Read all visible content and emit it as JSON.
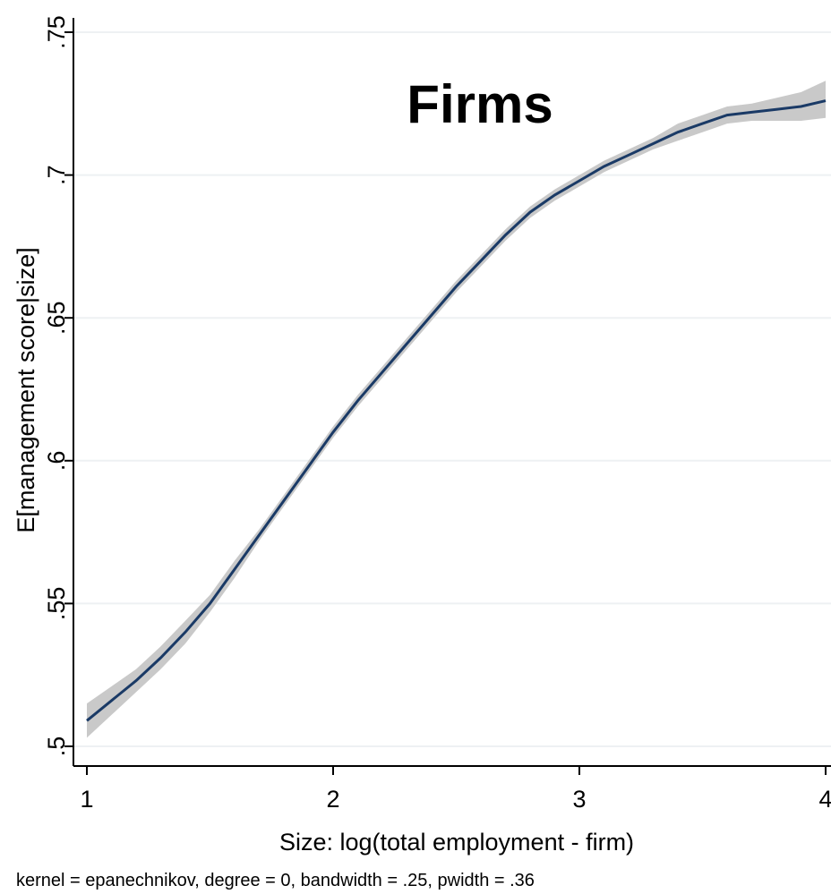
{
  "chart_data": {
    "type": "line",
    "title": "Firms",
    "xlabel": "Size: log(total employment - firm)",
    "ylabel": "E[management score|size]",
    "note": "kernel = epanechnikov, degree = 0, bandwidth = .25, pwidth = .36",
    "xlim": [
      1,
      4
    ],
    "ylim": [
      0.5,
      0.75
    ],
    "xticks": [
      1,
      2,
      3,
      4
    ],
    "xtick_labels": [
      "1",
      "2",
      "3",
      "4"
    ],
    "yticks": [
      0.5,
      0.55,
      0.6,
      0.65,
      0.7,
      0.75
    ],
    "ytick_labels": [
      ".5",
      ".55",
      ".6",
      ".65",
      ".7",
      ".75"
    ],
    "grid": true,
    "legend": "none",
    "colors": {
      "line": "#1a3a66",
      "band": "#c9c9c9",
      "grid": "#eef1f3"
    },
    "series": [
      {
        "x": [
          1.0,
          1.1,
          1.2,
          1.3,
          1.4,
          1.5,
          1.6,
          1.7,
          1.8,
          1.9,
          2.0,
          2.1,
          2.2,
          2.3,
          2.4,
          2.5,
          2.6,
          2.7,
          2.8,
          2.9,
          3.0,
          3.1,
          3.2,
          3.3,
          3.4,
          3.5,
          3.6,
          3.7,
          3.8,
          3.9,
          4.0
        ],
        "values": [
          0.509,
          0.516,
          0.523,
          0.531,
          0.54,
          0.55,
          0.562,
          0.574,
          0.586,
          0.598,
          0.61,
          0.621,
          0.631,
          0.641,
          0.651,
          0.661,
          0.67,
          0.679,
          0.687,
          0.693,
          0.698,
          0.703,
          0.707,
          0.711,
          0.715,
          0.718,
          0.721,
          0.722,
          0.723,
          0.724,
          0.726
        ],
        "ci_low": [
          0.503,
          0.511,
          0.519,
          0.527,
          0.536,
          0.547,
          0.559,
          0.572,
          0.584,
          0.596,
          0.608,
          0.619,
          0.629,
          0.639,
          0.649,
          0.659,
          0.668,
          0.677,
          0.685,
          0.691,
          0.696,
          0.701,
          0.705,
          0.709,
          0.712,
          0.715,
          0.718,
          0.719,
          0.719,
          0.719,
          0.72
        ],
        "ci_high": [
          0.515,
          0.521,
          0.527,
          0.535,
          0.544,
          0.553,
          0.565,
          0.576,
          0.588,
          0.6,
          0.612,
          0.623,
          0.633,
          0.643,
          0.653,
          0.663,
          0.672,
          0.681,
          0.689,
          0.695,
          0.7,
          0.705,
          0.709,
          0.713,
          0.718,
          0.721,
          0.724,
          0.725,
          0.727,
          0.729,
          0.733
        ]
      }
    ]
  }
}
